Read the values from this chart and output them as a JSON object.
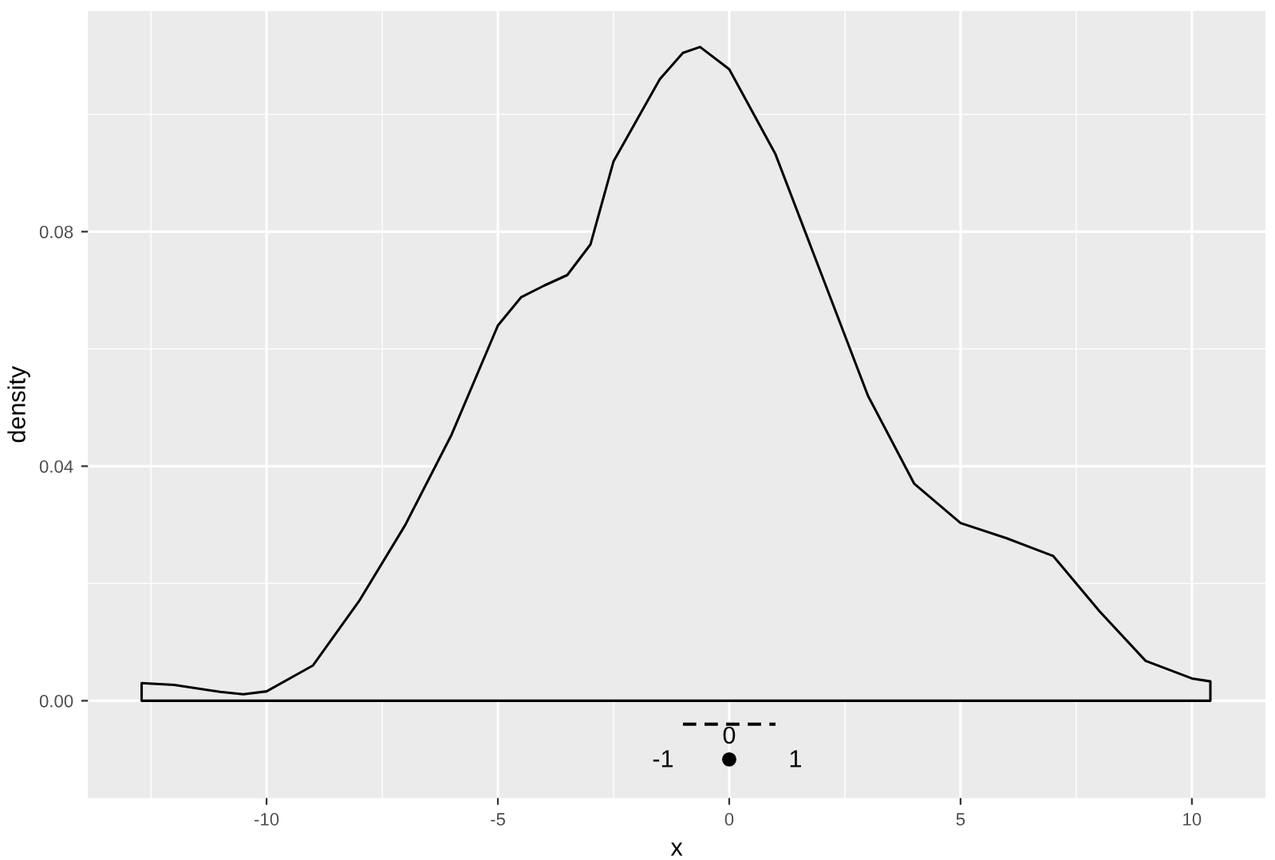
{
  "chart_data": {
    "type": "area",
    "xlabel": "x",
    "ylabel": "density",
    "xlim": [
      -13.86,
      11.59
    ],
    "ylim": [
      -0.0166,
      0.1176
    ],
    "xticks": [
      -10,
      -5,
      0,
      5,
      10
    ],
    "yticks": [
      {
        "value": 0,
        "label": "0.00"
      },
      {
        "value": 0.04,
        "label": "0.04"
      },
      {
        "value": 0.08,
        "label": "0.08"
      }
    ],
    "grid": true,
    "legend": false,
    "series": [
      {
        "color": "#000000",
        "x": [
          -12.7,
          -12,
          -11,
          -10.5,
          -10,
          -9,
          -8,
          -7,
          -6,
          -5,
          -4.5,
          -4,
          -3.5,
          -3,
          -2.5,
          -2,
          -1.5,
          -1,
          -0.63,
          0,
          1,
          2,
          3,
          4,
          5,
          6,
          7,
          8,
          9,
          10,
          10.4
        ],
        "values": [
          0.003,
          0.0027,
          0.0015,
          0.0011,
          0.0016,
          0.006,
          0.017,
          0.03,
          0.0454,
          0.064,
          0.0688,
          0.0708,
          0.0726,
          0.0778,
          0.092,
          0.099,
          0.106,
          0.1105,
          0.1115,
          0.1077,
          0.0932,
          0.0726,
          0.052,
          0.037,
          0.0303,
          0.0277,
          0.0247,
          0.0153,
          0.0068,
          0.0038,
          0.0033
        ]
      },
      {
        "type": "line",
        "line_style": "dashed",
        "color": "#000000",
        "x": [
          -1,
          1
        ],
        "values": [
          -0.004,
          -0.004
        ]
      },
      {
        "type": "scatter",
        "marker": "circle",
        "color": "#000000",
        "x": [
          0
        ],
        "values": [
          -0.01
        ]
      }
    ],
    "annotations": [
      {
        "text": "0",
        "x": 0,
        "y": -0.01
      },
      {
        "text": "-1",
        "x": -1,
        "y": -0.004
      },
      {
        "text": "1",
        "x": 1,
        "y": -0.004
      }
    ]
  }
}
